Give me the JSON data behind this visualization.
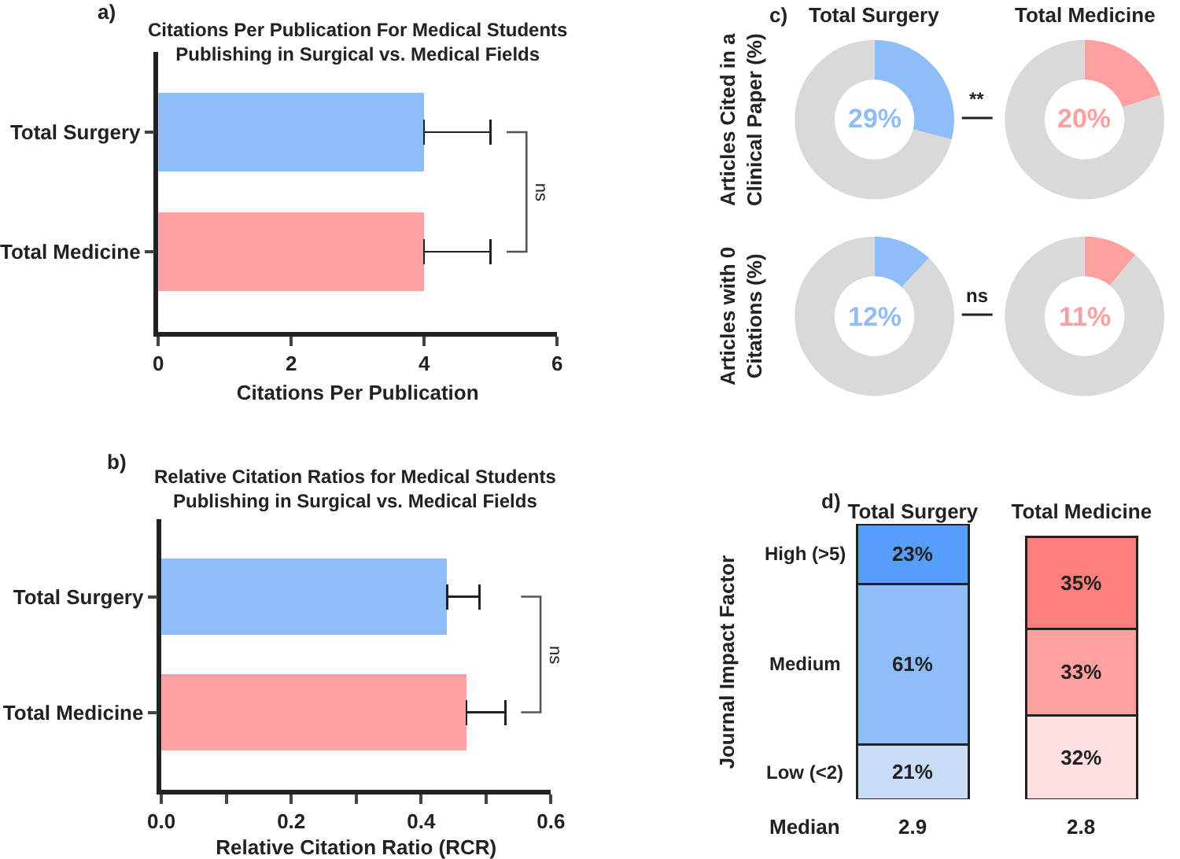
{
  "chart_data": [
    {
      "type": "bar",
      "orientation": "horizontal",
      "title": "Citations Per Publication For Medical Students\nPublishing in Surgical vs. Medical Fields",
      "xlabel": "Citations Per Publication",
      "categories": [
        "Total Surgery",
        "Total Medicine"
      ],
      "values": [
        4,
        4
      ],
      "colors": [
        "#8fbdf7",
        "#ffa0a0"
      ],
      "errors": [
        [
          4,
          5
        ],
        [
          4,
          5
        ]
      ],
      "xlim": [
        0,
        6
      ],
      "xticks": [
        0,
        2,
        4,
        6
      ],
      "annotations": [
        "a)",
        "ns"
      ]
    },
    {
      "type": "bar",
      "orientation": "horizontal",
      "title": "Relative Citation Ratios for Medical Students\nPublishing in Surgical vs. Medical Fields",
      "xlabel": "Relative Citation Ratio (RCR)",
      "categories": [
        "Total Surgery",
        "Total Medicine"
      ],
      "values": [
        0.44,
        0.47
      ],
      "colors": [
        "#8fbdf7",
        "#ffa0a0"
      ],
      "errors": [
        [
          0.44,
          0.49
        ],
        [
          0.47,
          0.53
        ]
      ],
      "xlim": [
        0,
        0.6
      ],
      "xticks": [
        {
          "value": 0,
          "label": "0.0"
        },
        {
          "value": 0.1,
          "label": null
        },
        0.2,
        {
          "value": 0.3,
          "label": null
        },
        0.4,
        {
          "value": 0.5,
          "label": null
        },
        0.6
      ],
      "annotations": [
        "b)",
        "ns"
      ]
    },
    {
      "type": "donut",
      "title": "Total Surgery",
      "ylabel": "Articles Cited in a\nClinical Paper (%)",
      "categories": [
        null,
        null
      ],
      "values": [
        29,
        71
      ],
      "colors": [
        "#8fbdf7",
        "#d9d9d9"
      ],
      "annotations": [
        "29%",
        "**",
        "c)"
      ]
    },
    {
      "type": "donut",
      "title": "Total Medicine",
      "categories": [
        null,
        null
      ],
      "values": [
        20,
        80
      ],
      "colors": [
        "#ffa0a0",
        "#d9d9d9"
      ],
      "annotations": [
        "20%"
      ]
    },
    {
      "type": "donut",
      "ylabel": "Articles with 0\nCitations (%)",
      "categories": [
        null,
        null
      ],
      "values": [
        12,
        88
      ],
      "colors": [
        "#8fbdf7",
        "#d9d9d9"
      ],
      "annotations": [
        "12%",
        "ns"
      ]
    },
    {
      "type": "donut",
      "categories": [
        null,
        null
      ],
      "values": [
        11,
        89
      ],
      "colors": [
        "#ffa0a0",
        "#d9d9d9"
      ],
      "annotations": [
        "11%"
      ]
    },
    {
      "type": "bar",
      "stacked": true,
      "ylabel": "Journal Impact Factor",
      "categories": [
        "Total Surgery",
        "Total Medicine"
      ],
      "series": [
        {
          "name": "Low (<2)",
          "colors": [
            "#c9ddf7",
            "#ffdfdf"
          ],
          "values": [
            21,
            32
          ],
          "value_labels": [
            "21%",
            "32%"
          ]
        },
        {
          "name": "Medium",
          "colors": [
            "#8fbdf7",
            "#ffa0a0"
          ],
          "values": [
            61,
            33
          ],
          "value_labels": [
            "61%",
            "33%"
          ]
        },
        {
          "name": "High (>5)",
          "colors": [
            "#559ffa",
            "#ff7f7f"
          ],
          "values": [
            23,
            35
          ],
          "value_labels": [
            "23%",
            "35%"
          ]
        }
      ],
      "annotations": [
        "d)",
        "Median",
        "2.9",
        "2.8"
      ]
    }
  ]
}
